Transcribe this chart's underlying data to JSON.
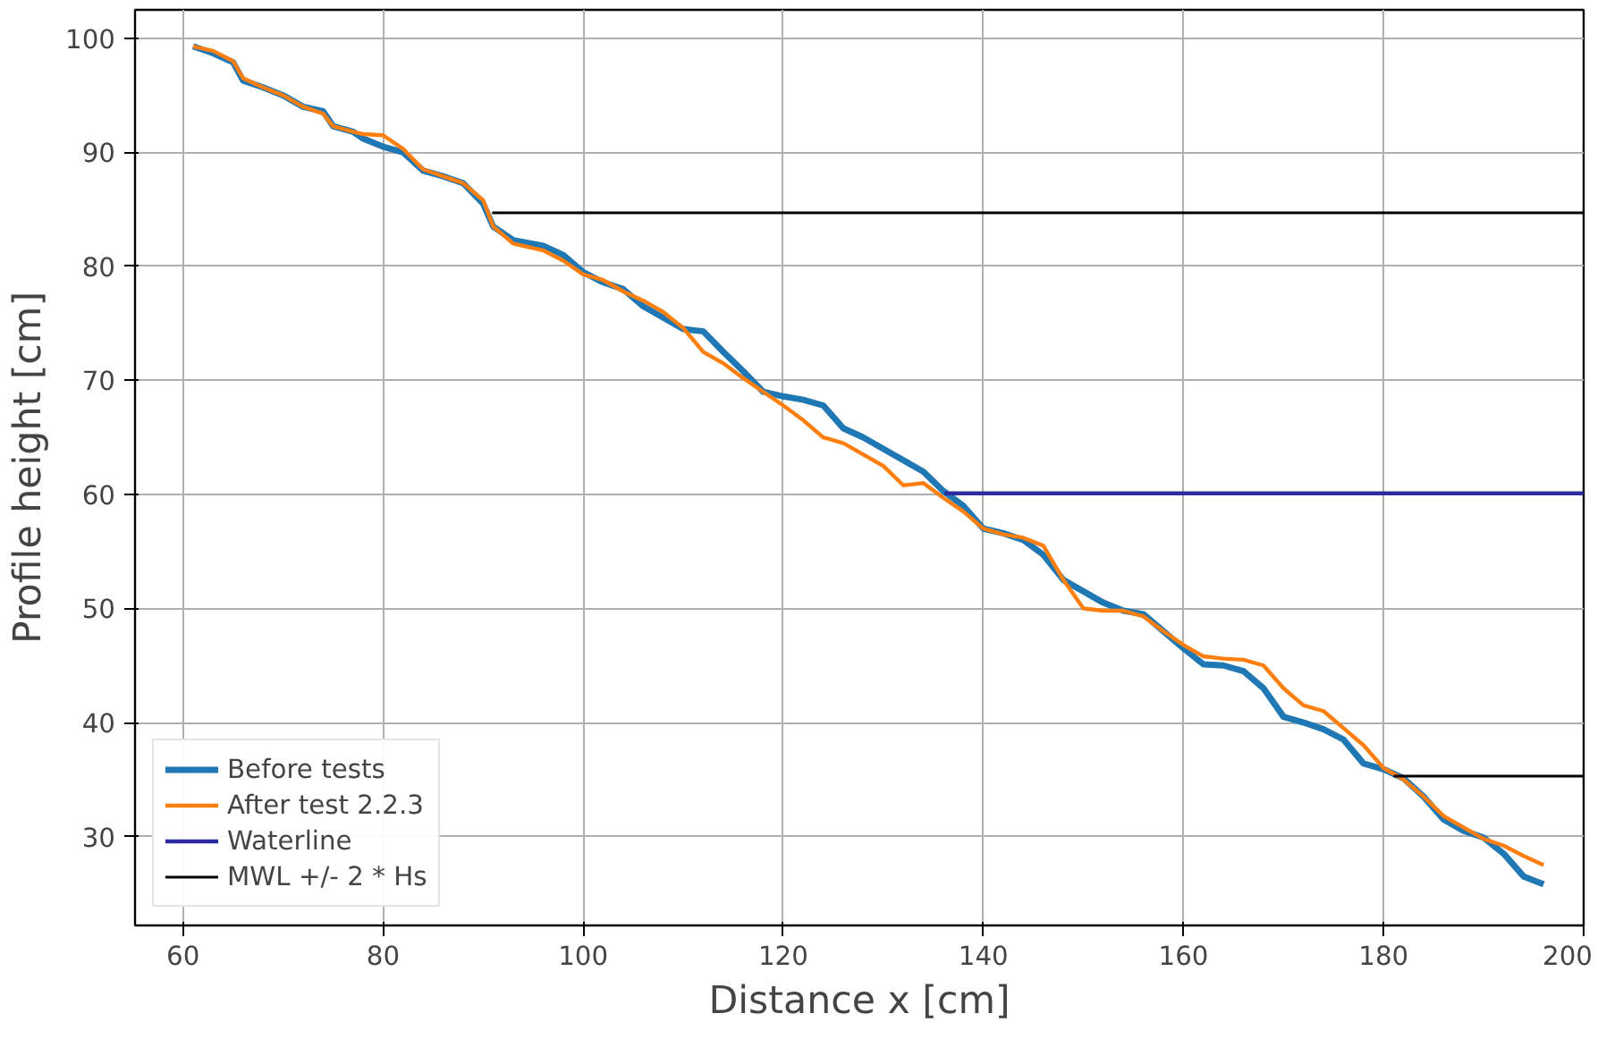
{
  "chart_data": {
    "type": "line",
    "xlabel": "Distance x [cm]",
    "ylabel": "Profile height [cm]",
    "xlim": [
      55.2,
      200
    ],
    "ylim": [
      22.2,
      102.5
    ],
    "xticks": [
      60,
      80,
      100,
      120,
      140,
      160,
      180,
      200
    ],
    "yticks": [
      30,
      40,
      50,
      60,
      70,
      80,
      90,
      100
    ],
    "grid": true,
    "legend": "bottom left",
    "line_style": "solid",
    "marker": "none",
    "x": [
      61,
      63,
      65,
      66,
      68,
      70,
      72,
      74,
      75,
      77,
      78,
      80,
      82,
      84,
      86,
      88,
      90,
      91,
      93,
      96,
      98,
      100,
      102,
      104,
      106,
      108,
      110,
      112,
      114,
      116,
      118,
      120,
      122,
      124,
      126,
      128,
      130,
      132,
      134,
      136,
      138,
      140,
      142,
      144,
      146,
      148,
      150,
      152,
      154,
      156,
      158,
      160,
      162,
      164,
      166,
      168,
      170,
      172,
      174,
      176,
      178,
      180,
      182,
      184,
      186,
      188,
      190,
      192,
      194,
      196
    ],
    "series": [
      {
        "name": "Before tests",
        "color": "#1f77b4",
        "values": [
          99.3,
          98.7,
          97.9,
          96.3,
          95.7,
          95.0,
          94.0,
          93.6,
          92.3,
          91.8,
          91.2,
          90.5,
          90.0,
          88.4,
          87.9,
          87.3,
          85.5,
          83.5,
          82.3,
          81.8,
          81.0,
          79.5,
          78.6,
          78.0,
          76.5,
          75.5,
          74.5,
          74.3,
          72.5,
          70.8,
          69.0,
          68.6,
          68.3,
          67.8,
          65.8,
          65.0,
          64.0,
          63.0,
          62.0,
          60.3,
          59.0,
          57.0,
          56.6,
          56.0,
          54.7,
          52.5,
          51.5,
          50.5,
          49.8,
          49.5,
          48.0,
          46.5,
          45.1,
          45.0,
          44.5,
          43.0,
          40.5,
          40.0,
          39.4,
          38.5,
          36.4,
          35.9,
          35.1,
          33.5,
          31.5,
          30.5,
          29.9,
          28.5,
          26.5,
          25.8
        ]
      },
      {
        "name": "After test 2.2.3",
        "color": "#ff7f0e",
        "values": [
          99.3,
          98.9,
          98.0,
          96.5,
          95.7,
          95.0,
          94.0,
          93.4,
          92.3,
          91.8,
          91.6,
          91.5,
          90.3,
          88.5,
          87.9,
          87.3,
          85.8,
          83.5,
          82.0,
          81.4,
          80.5,
          79.3,
          78.8,
          77.8,
          77.0,
          76.0,
          74.6,
          72.5,
          71.5,
          70.2,
          69.0,
          67.8,
          66.5,
          65.0,
          64.5,
          63.5,
          62.5,
          60.8,
          61.0,
          59.7,
          58.5,
          57.0,
          56.5,
          56.2,
          55.5,
          52.5,
          50.0,
          49.8,
          49.8,
          49.3,
          48.0,
          46.8,
          45.8,
          45.6,
          45.5,
          45.0,
          43.0,
          41.5,
          41.0,
          39.5,
          38.0,
          36.0,
          35.0,
          33.5,
          31.8,
          30.8,
          29.8,
          29.2,
          28.3,
          27.5
        ]
      },
      {
        "name": "Waterline",
        "color": "#2c2ca0",
        "x": [
          136.1,
          200
        ],
        "values": [
          60.1,
          60.1
        ]
      },
      {
        "name": "MWL +/- 2 * Hs",
        "color": "#000000",
        "x": [
          90.9,
          200
        ],
        "values": [
          84.7,
          84.7
        ]
      },
      {
        "color": "#000000",
        "x": [
          181,
          200
        ],
        "values": [
          35.3,
          35.3
        ]
      }
    ]
  }
}
